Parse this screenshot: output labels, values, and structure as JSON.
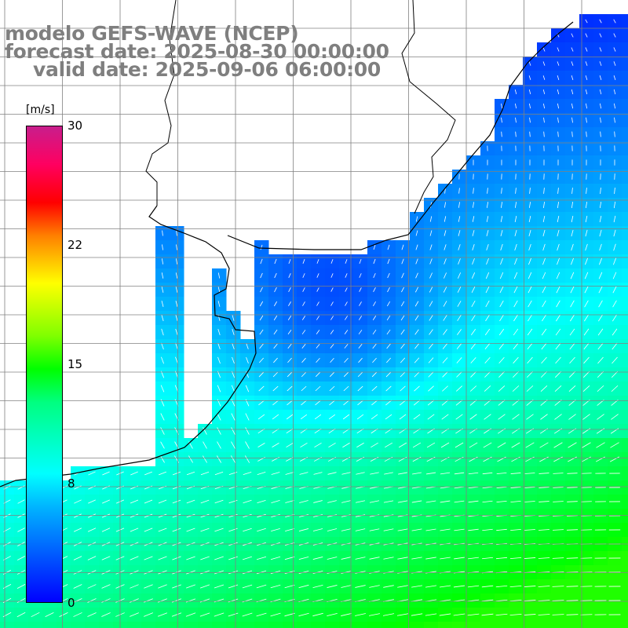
{
  "title": {
    "line1": "modelo GEFS-WAVE (NCEP)",
    "line2": "forecast date: 2025-08-30 00:00:00",
    "line3": "valid date: 2025-09-06 06:00:00"
  },
  "colorbar": {
    "unit": "[m/s]",
    "ticks": [
      "30",
      "22",
      "15",
      "8",
      "0"
    ],
    "tick_values": [
      30,
      22,
      15,
      8,
      0
    ],
    "range": [
      0,
      30
    ],
    "stops": [
      "#0000ff",
      "#00b4ff",
      "#00ffff",
      "#00ff80",
      "#00ff00",
      "#ffff00",
      "#ff8000",
      "#ff0000",
      "#c81e8c"
    ]
  },
  "map": {
    "variable": "wind speed and direction",
    "land_color": "#ffffff",
    "grid_color": "#808080",
    "coastline_color": "#000000",
    "arrow_color": "#ffffff"
  }
}
